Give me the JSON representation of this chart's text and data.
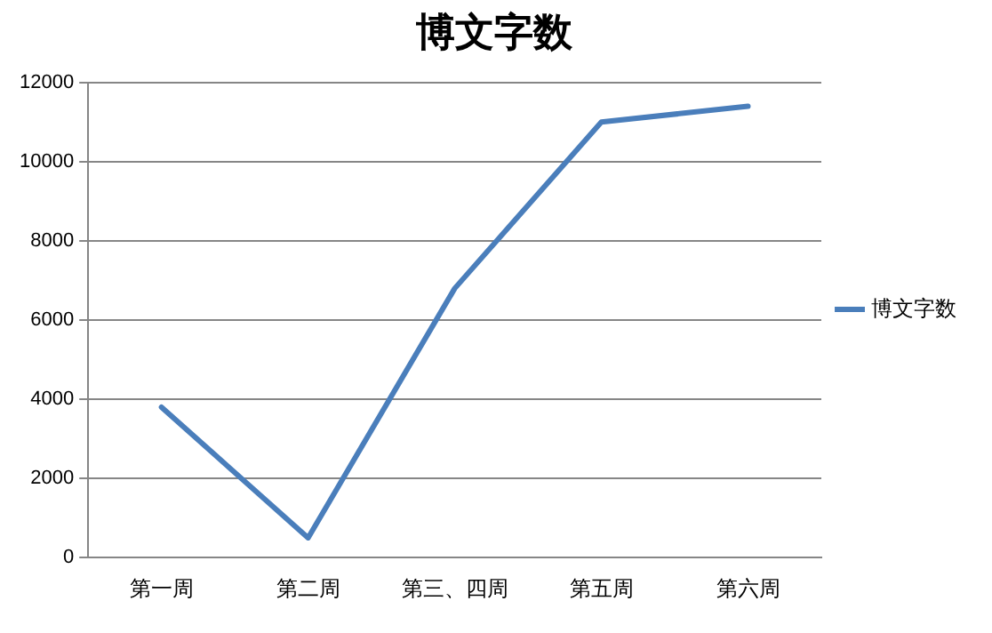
{
  "chart_data": {
    "type": "line",
    "title": "博文字数",
    "categories": [
      "第一周",
      "第二周",
      "第三、四周",
      "第五周",
      "第六周"
    ],
    "series": [
      {
        "name": "博文字数",
        "color": "#4a7ebb",
        "values": [
          3800,
          500,
          6800,
          11000,
          11400
        ]
      }
    ],
    "ylim": [
      0,
      12000
    ],
    "yticks": [
      0,
      2000,
      4000,
      6000,
      8000,
      10000,
      12000
    ],
    "grid": "y",
    "legend": "right",
    "marker": "none",
    "line_style": "solid"
  }
}
